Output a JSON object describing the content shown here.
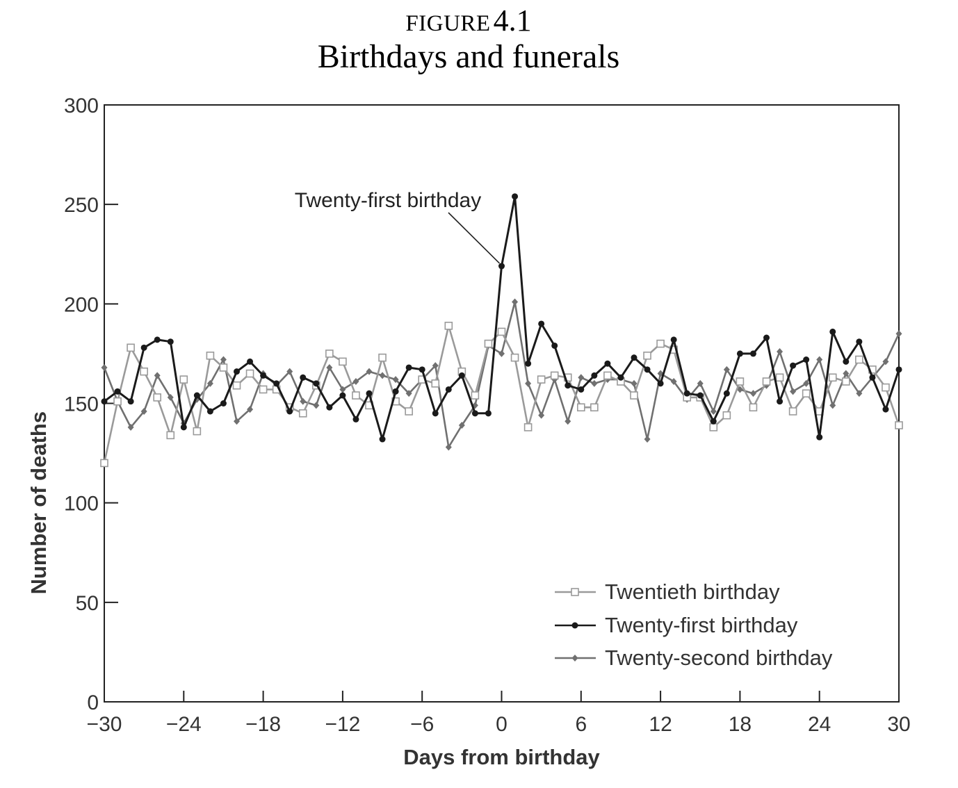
{
  "figure": {
    "label_word": "FIGURE",
    "label_number": "4.1"
  },
  "chart_data": {
    "type": "line",
    "title": "Birthdays and funerals",
    "xlabel": "Days from birthday",
    "ylabel": "Number of deaths",
    "xlim": [
      -30,
      30
    ],
    "ylim": [
      0,
      300
    ],
    "xticks": [
      -30,
      -24,
      -18,
      -12,
      -6,
      0,
      6,
      12,
      18,
      24,
      30
    ],
    "xtick_labels": [
      "−30",
      "−24",
      "−18",
      "−12",
      "−6",
      "0",
      "6",
      "12",
      "18",
      "24",
      "30"
    ],
    "yticks": [
      0,
      50,
      100,
      150,
      200,
      250,
      300
    ],
    "ytick_labels": [
      "0",
      "50",
      "100",
      "150",
      "200",
      "250",
      "300"
    ],
    "grid": false,
    "legend_position": "bottom-right",
    "annotation": {
      "text": "Twenty-first birthday",
      "x": 0,
      "y": 219
    },
    "x": [
      -30,
      -29,
      -28,
      -27,
      -26,
      -25,
      -24,
      -23,
      -22,
      -21,
      -20,
      -19,
      -18,
      -17,
      -16,
      -15,
      -14,
      -13,
      -12,
      -11,
      -10,
      -9,
      -8,
      -7,
      -6,
      -5,
      -4,
      -3,
      -2,
      -1,
      0,
      1,
      2,
      3,
      4,
      5,
      6,
      7,
      8,
      9,
      10,
      11,
      12,
      13,
      14,
      15,
      16,
      17,
      18,
      19,
      20,
      21,
      22,
      23,
      24,
      25,
      26,
      27,
      28,
      29,
      30
    ],
    "series": [
      {
        "name": "Twentieth birthday",
        "color": "#9a9a9a",
        "marker": "square",
        "values": [
          120,
          151,
          178,
          166,
          153,
          134,
          162,
          136,
          174,
          168,
          159,
          165,
          157,
          157,
          148,
          145,
          159,
          175,
          171,
          154,
          149,
          173,
          151,
          146,
          162,
          160,
          189,
          166,
          154,
          180,
          186,
          173,
          138,
          162,
          164,
          163,
          148,
          148,
          164,
          161,
          154,
          174,
          180,
          177,
          153,
          153,
          138,
          144,
          161,
          148,
          161,
          163,
          146,
          155,
          146,
          163,
          161,
          172,
          167,
          158,
          139
        ]
      },
      {
        "name": "Twenty-first birthday",
        "color": "#1a1a1a",
        "marker": "circle",
        "values": [
          151,
          156,
          151,
          178,
          182,
          181,
          138,
          154,
          146,
          150,
          166,
          171,
          164,
          160,
          146,
          163,
          160,
          148,
          154,
          142,
          155,
          132,
          156,
          168,
          167,
          145,
          157,
          164,
          145,
          145,
          219,
          254,
          170,
          190,
          179,
          159,
          157,
          164,
          170,
          163,
          173,
          167,
          160,
          182,
          155,
          154,
          141,
          155,
          175,
          175,
          183,
          151,
          169,
          172,
          133,
          186,
          171,
          181,
          163,
          147,
          167
        ]
      },
      {
        "name": "Twenty-second birthday",
        "color": "#707070",
        "marker": "diamond",
        "values": [
          168,
          151,
          138,
          146,
          164,
          153,
          140,
          152,
          160,
          172,
          141,
          147,
          165,
          159,
          166,
          151,
          149,
          168,
          157,
          161,
          166,
          164,
          162,
          155,
          162,
          169,
          128,
          139,
          149,
          179,
          175,
          201,
          160,
          144,
          162,
          141,
          163,
          160,
          162,
          162,
          160,
          132,
          165,
          161,
          152,
          160,
          146,
          167,
          157,
          155,
          159,
          176,
          156,
          160,
          172,
          149,
          165,
          155,
          163,
          171,
          185
        ]
      }
    ]
  }
}
